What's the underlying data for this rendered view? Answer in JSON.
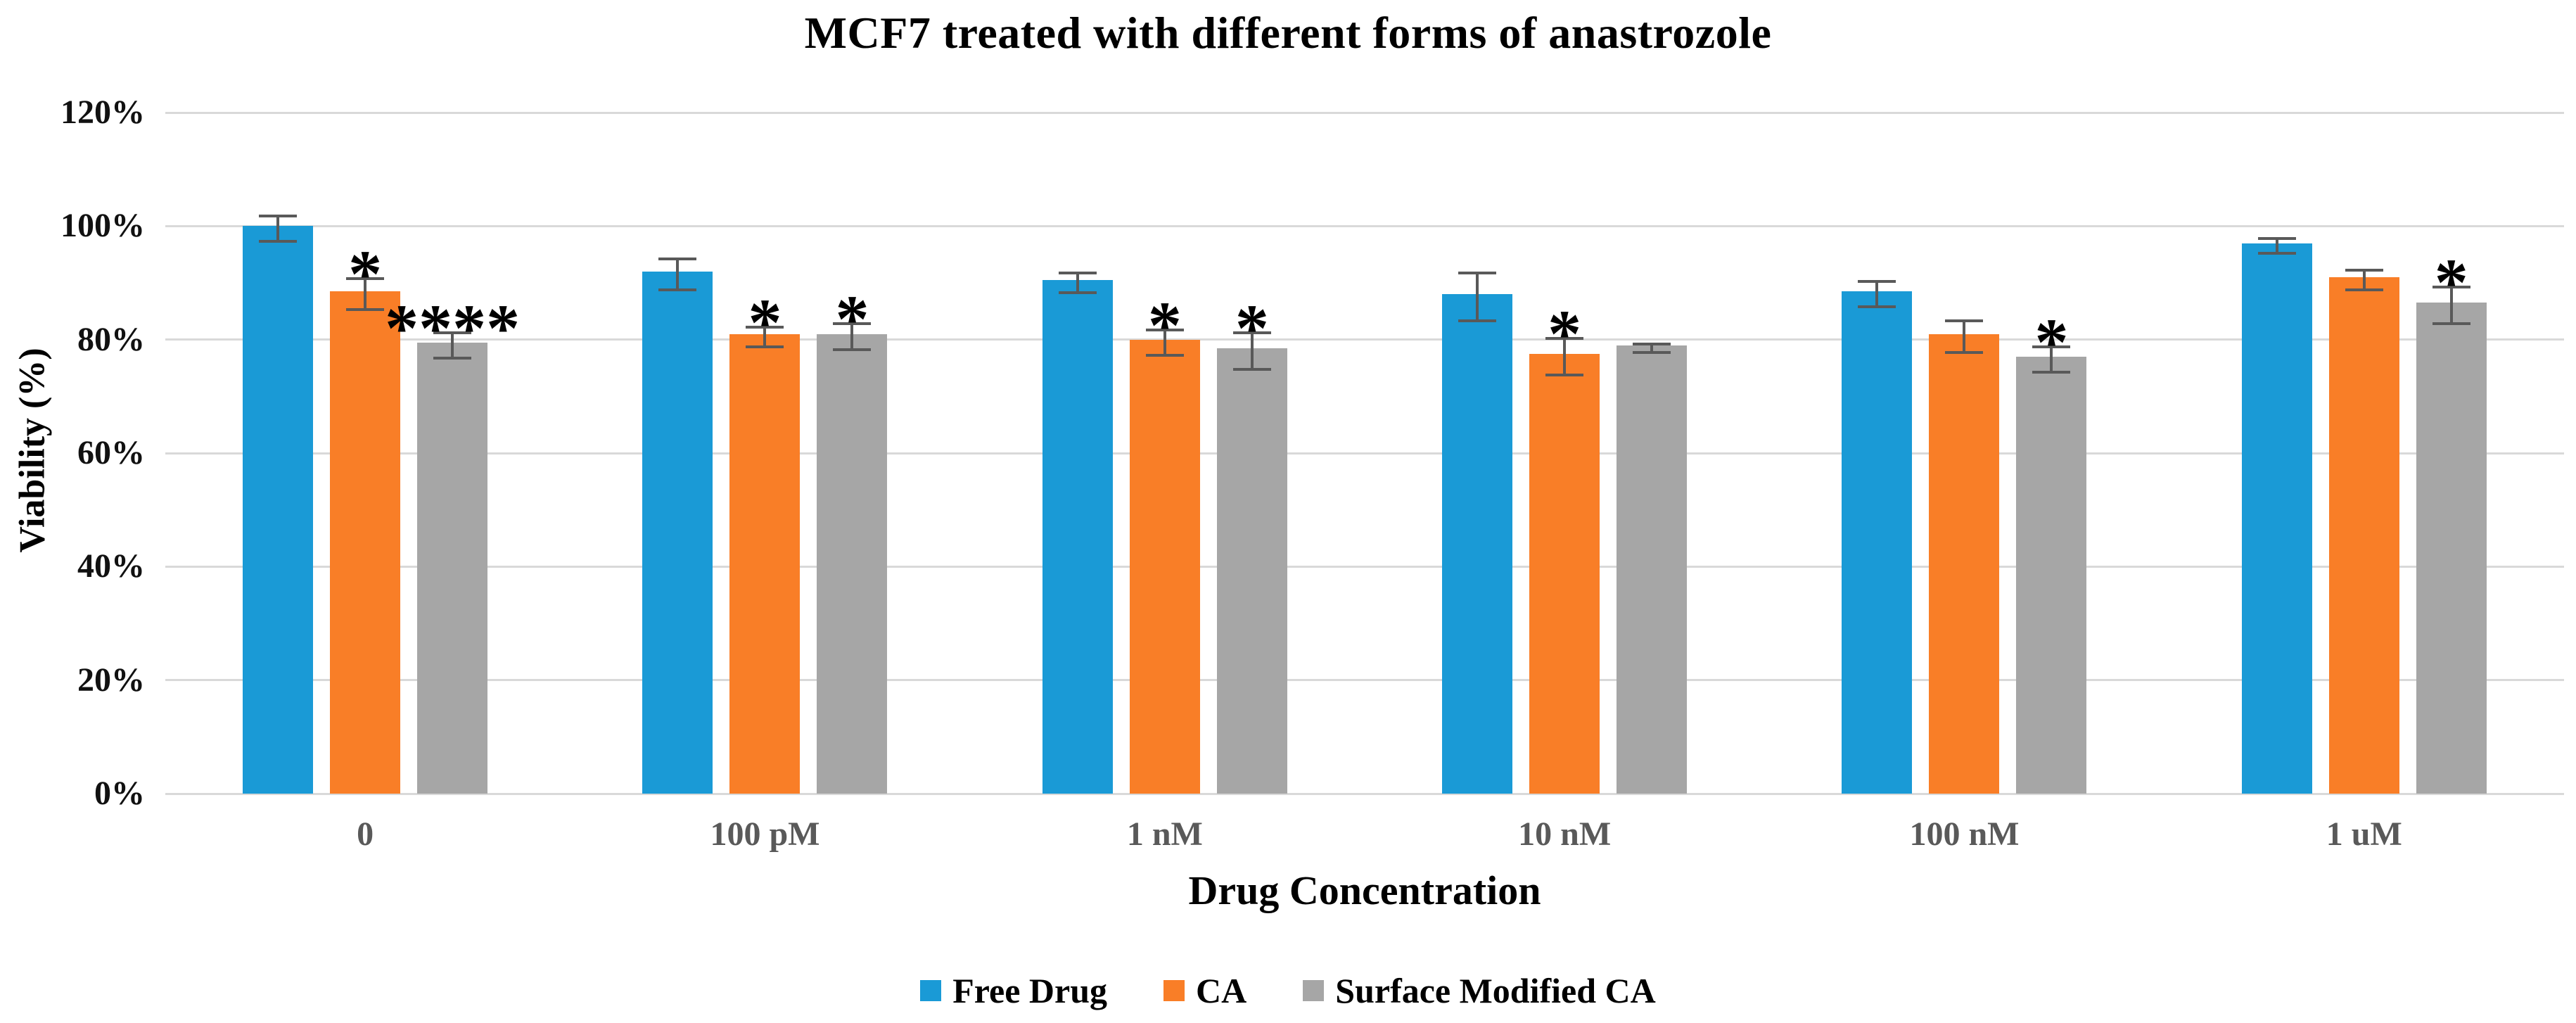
{
  "chart_data": {
    "type": "bar",
    "title": "MCF7 treated with different forms of anastrozole",
    "xlabel": "Drug Concentration",
    "ylabel": "Viability (%)",
    "categories": [
      "0",
      "100 pM",
      "1 nM",
      "10 nM",
      "100 nM",
      "1 uM"
    ],
    "y_ticks": [
      "0%",
      "20%",
      "40%",
      "60%",
      "80%",
      "100%",
      "120%"
    ],
    "y_tick_values": [
      0,
      20,
      40,
      60,
      80,
      100,
      120
    ],
    "ylim": [
      0,
      120
    ],
    "grid": true,
    "legend_position": "bottom",
    "series": [
      {
        "name": "Free Drug",
        "color": "#1A9AD6",
        "values": [
          100,
          92,
          90.5,
          88,
          88.5,
          97
        ],
        "errors": [
          2,
          2.5,
          1.5,
          4,
          2,
          1
        ],
        "sig": [
          "",
          "",
          "",
          "",
          "",
          ""
        ]
      },
      {
        "name": "CA",
        "color": "#F97E27",
        "values": [
          88.5,
          81,
          80,
          77.5,
          81,
          91
        ],
        "errors": [
          2.5,
          1.5,
          2,
          3,
          2.5,
          1.5
        ],
        "sig": [
          "*",
          "*",
          "*",
          "*",
          "",
          ""
        ]
      },
      {
        "name": "Surface Modified CA",
        "color": "#A6A6A6",
        "values": [
          79.5,
          81,
          78.5,
          79,
          77,
          86.5
        ],
        "errors": [
          2,
          2,
          3,
          0.5,
          2,
          3
        ],
        "sig": [
          "****",
          "*",
          "*",
          "",
          "*",
          "*"
        ]
      }
    ],
    "style": {
      "gridline_color": "#D9D9D9",
      "error_bar_color": "#595959",
      "x_tick_color": "#595959",
      "y_tick_color": "#111111",
      "title_color": "#000000",
      "background": "#FFFFFF"
    }
  }
}
